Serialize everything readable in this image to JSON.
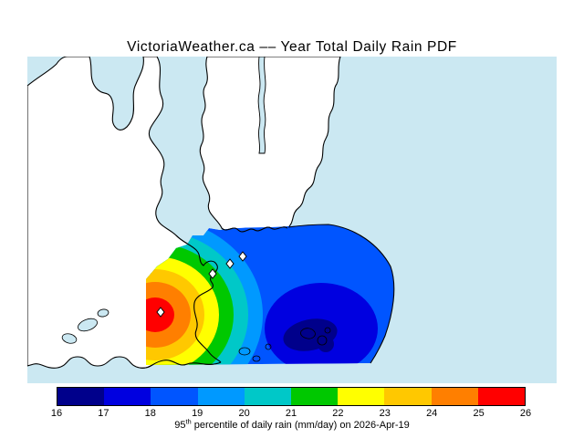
{
  "title": "VictoriaWeather.ca –– Year Total Daily Rain PDF",
  "map": {
    "water_color": "#cbe8f2",
    "land_color": "#ffffff",
    "coast_color": "#000000",
    "marker_fill": "#ffffff"
  },
  "colorbar": {
    "ticks": [
      "16",
      "17",
      "18",
      "19",
      "20",
      "21",
      "22",
      "23",
      "24",
      "25",
      "26"
    ],
    "colors": [
      "#00008b",
      "#0000e0",
      "#0055ff",
      "#0099ff",
      "#00c8c8",
      "#00c800",
      "#ffff00",
      "#ffc800",
      "#ff7f00",
      "#ff0000"
    ],
    "border_color": "#000000"
  },
  "caption": {
    "prefix": "95",
    "sup": "th",
    "rest": " percentile of daily rain (mm/day) on 2026-Apr-19"
  },
  "chart_data": {
    "type": "heatmap",
    "subtype": "filled-contour-map",
    "title": "VictoriaWeather.ca –– Year Total Daily Rain PDF",
    "quantity": "95th percentile of daily rain",
    "units": "mm/day",
    "date": "2026-Apr-19",
    "colorbar": {
      "orientation": "horizontal",
      "position": "bottom",
      "range": [
        16,
        26
      ],
      "ticks": [
        16,
        17,
        18,
        19,
        20,
        21,
        22,
        23,
        24,
        25,
        26
      ],
      "segment_colors": [
        "#00008b",
        "#0000e0",
        "#0055ff",
        "#0099ff",
        "#00c8c8",
        "#00c800",
        "#ffff00",
        "#ffc800",
        "#ff7f00",
        "#ff0000"
      ]
    },
    "spatial_pattern": {
      "high": {
        "value_band": "25-26 mm/day",
        "location": "west side of data region (red core)"
      },
      "low": {
        "value_band": "16-17 mm/day",
        "location": "southeast pocket (dark navy)"
      },
      "gradient": "values decrease from west to east across the mapped region"
    },
    "stations_marked": 4
  }
}
